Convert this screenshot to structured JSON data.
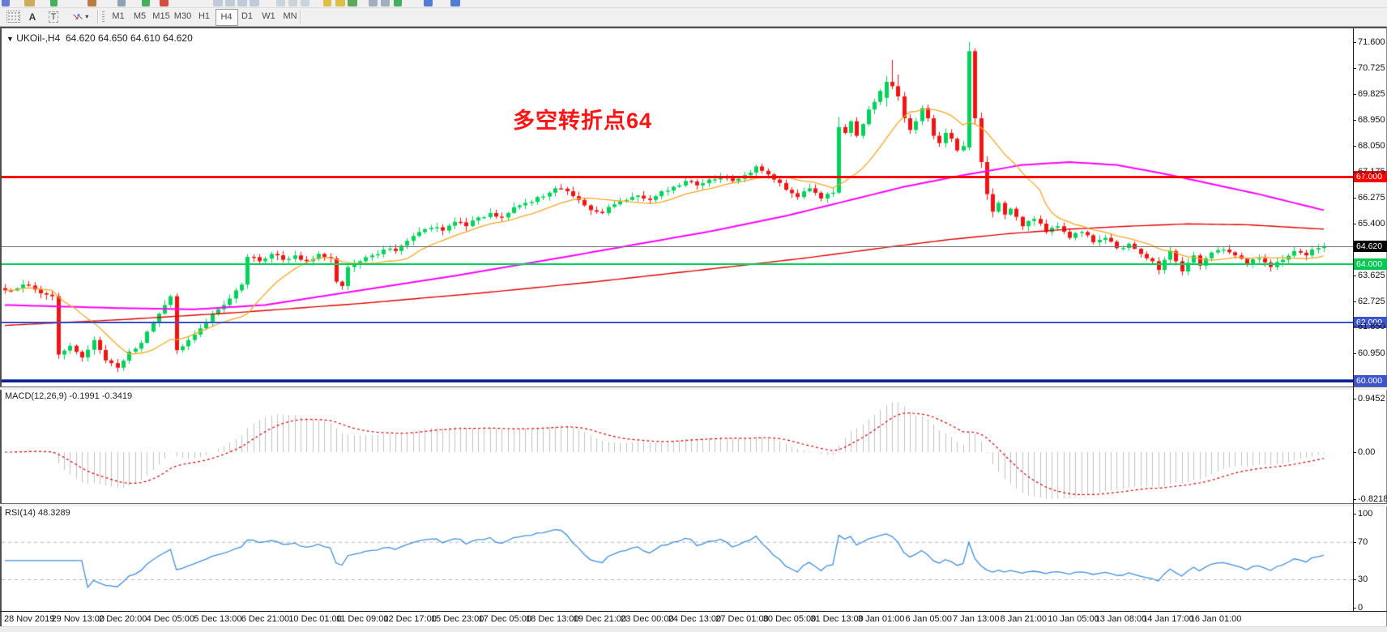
{
  "toolbar": {
    "tools": {
      "pointer_grid": "F",
      "text_a": "A",
      "text_label": "T"
    },
    "timeframes": [
      "M1",
      "M5",
      "M15",
      "M30",
      "H1",
      "H4",
      "D1",
      "W1",
      "MN"
    ],
    "active_timeframe": "H4",
    "top_fragments": [
      [
        2,
        10,
        "#5570cc"
      ],
      [
        30,
        13,
        "#c9a54b"
      ],
      [
        62,
        9,
        "#2fa94e"
      ],
      [
        108,
        11,
        "#b4702e"
      ],
      [
        145,
        10,
        "#8596ad"
      ],
      [
        175,
        10,
        "#2fa94e"
      ],
      [
        197,
        11,
        "#d23b2a"
      ],
      [
        263,
        12,
        "#b9c6d4"
      ],
      [
        278,
        12,
        "#b9c6d4"
      ],
      [
        293,
        12,
        "#b9c6d4"
      ],
      [
        308,
        12,
        "#b9c6d4"
      ],
      [
        341,
        11,
        "#c6cfd9"
      ],
      [
        356,
        11,
        "#c6cfd9"
      ],
      [
        371,
        11,
        "#c6cfd9"
      ],
      [
        399,
        10,
        "#d9b931"
      ],
      [
        414,
        12,
        "#d9b931"
      ],
      [
        429,
        12,
        "#4f9e48"
      ],
      [
        455,
        11,
        "#98a6b8"
      ],
      [
        470,
        11,
        "#98a6b8"
      ],
      [
        486,
        10,
        "#2fa94e"
      ],
      [
        523,
        11,
        "#3f6fd0"
      ],
      [
        556,
        12,
        "#3f6fd0"
      ]
    ]
  },
  "chart": {
    "symbol_period": "UKOil-,H4",
    "quotes": "64.620 64.650 64.610 64.620",
    "annotation": "多空转折点64",
    "annotation_color": "#fe1414",
    "current_price": "64.620",
    "price_ticks": [
      {
        "t": "71.600",
        "p": 71.6
      },
      {
        "t": "70.725",
        "p": 70.725
      },
      {
        "t": "69.825",
        "p": 69.825
      },
      {
        "t": "68.950",
        "p": 68.95
      },
      {
        "t": "68.050",
        "p": 68.05
      },
      {
        "t": "67.175",
        "p": 67.175
      },
      {
        "t": "66.275",
        "p": 66.275
      },
      {
        "t": "65.400",
        "p": 65.4
      },
      {
        "t": "63.625",
        "p": 63.625
      },
      {
        "t": "62.725",
        "p": 62.725
      },
      {
        "t": "61.850",
        "p": 61.85
      },
      {
        "t": "60.950",
        "p": 60.95
      }
    ],
    "levels": [
      {
        "label": "67.000",
        "price": 67.0,
        "color": "#fe0000",
        "badge": "#fe0000",
        "thickness": 3
      },
      {
        "label": "64.620",
        "price": 64.62,
        "color": "#777777",
        "badge": "#000000",
        "thickness": 1
      },
      {
        "label": "64.000",
        "price": 64.0,
        "color": "#00d25a",
        "badge": "#00c853",
        "thickness": 2
      },
      {
        "label": "62.000",
        "price": 62.0,
        "color": "#3c55cf",
        "badge": "#3c55cf",
        "thickness": 2
      },
      {
        "label": "60.000",
        "price": 60.0,
        "color": "#101f8c",
        "badge": "#3c55cf",
        "thickness": 4
      }
    ]
  },
  "macd": {
    "label": "MACD(12,26,9)",
    "values": "-0.1991 -0.3419",
    "ticks": [
      {
        "t": "0.9452",
        "v": 0.9452
      },
      {
        "t": "0.00",
        "v": 0
      },
      {
        "t": "-0.8218",
        "v": -0.8218
      }
    ]
  },
  "rsi": {
    "label": "RSI(14)",
    "value": "48.3289",
    "ticks": [
      {
        "t": "100",
        "v": 100
      },
      {
        "t": "70",
        "v": 70
      },
      {
        "t": "30",
        "v": 30
      },
      {
        "t": "0",
        "v": 0
      }
    ],
    "dashed_levels": [
      70,
      30
    ]
  },
  "time_axis": [
    "28 Nov 2019",
    "29 Nov 13:00",
    "2 Dec 20:00",
    "4 Dec 05:00",
    "5 Dec 13:00",
    "6 Dec 21:00",
    "10 Dec 01:00",
    "11 Dec 09:00",
    "12 Dec 17:00",
    "15 Dec 23:00",
    "17 Dec 05:00",
    "18 Dec 13:00",
    "19 Dec 21:00",
    "23 Dec 00:00",
    "24 Dec 13:00",
    "27 Dec 01:00",
    "30 Dec 05:00",
    "31 Dec 13:00",
    "3 Jan 01:00",
    "6 Jan 05:00",
    "7 Jan 13:00",
    "8 Jan 21:00",
    "10 Jan 05:00",
    "13 Jan 08:00",
    "14 Jan 17:00",
    "16 Jan 01:00"
  ],
  "chart_data": {
    "type": "candlestick",
    "symbol": "UKOil-",
    "period": "H4",
    "ohlc_current": {
      "open": 64.62,
      "high": 64.65,
      "low": 64.61,
      "close": 64.62
    },
    "price_axis_range": [
      59.8,
      72.1
    ],
    "bars": 224,
    "bar_colors": {
      "up": "#00d25a",
      "down": "#f21414"
    },
    "close_anchors": [
      [
        0,
        63.1
      ],
      [
        3,
        63.3
      ],
      [
        6,
        63.0
      ],
      [
        8,
        62.9
      ],
      [
        9,
        60.9
      ],
      [
        11,
        61.2
      ],
      [
        13,
        60.8
      ],
      [
        15,
        61.4
      ],
      [
        17,
        60.7
      ],
      [
        19,
        60.45
      ],
      [
        21,
        61.0
      ],
      [
        23,
        61.3
      ],
      [
        25,
        62.0
      ],
      [
        27,
        62.6
      ],
      [
        28,
        62.9
      ],
      [
        29,
        61.05
      ],
      [
        31,
        61.4
      ],
      [
        33,
        61.8
      ],
      [
        35,
        62.3
      ],
      [
        37,
        62.6
      ],
      [
        39,
        63.1
      ],
      [
        40,
        63.3
      ],
      [
        41,
        64.25
      ],
      [
        43,
        64.1
      ],
      [
        45,
        64.35
      ],
      [
        47,
        64.15
      ],
      [
        49,
        64.3
      ],
      [
        51,
        64.1
      ],
      [
        53,
        64.35
      ],
      [
        55,
        64.2
      ],
      [
        56,
        63.4
      ],
      [
        57,
        63.25
      ],
      [
        58,
        63.9
      ],
      [
        60,
        64.1
      ],
      [
        62,
        64.3
      ],
      [
        64,
        64.5
      ],
      [
        66,
        64.45
      ],
      [
        68,
        64.8
      ],
      [
        70,
        65.1
      ],
      [
        72,
        65.25
      ],
      [
        74,
        65.15
      ],
      [
        76,
        65.45
      ],
      [
        78,
        65.3
      ],
      [
        80,
        65.6
      ],
      [
        82,
        65.75
      ],
      [
        84,
        65.6
      ],
      [
        86,
        65.95
      ],
      [
        88,
        66.1
      ],
      [
        90,
        66.3
      ],
      [
        92,
        66.45
      ],
      [
        93,
        66.6
      ],
      [
        95,
        66.5
      ],
      [
        97,
        66.2
      ],
      [
        99,
        65.85
      ],
      [
        101,
        65.75
      ],
      [
        103,
        66.05
      ],
      [
        105,
        66.2
      ],
      [
        107,
        66.35
      ],
      [
        109,
        66.2
      ],
      [
        111,
        66.5
      ],
      [
        113,
        66.65
      ],
      [
        115,
        66.85
      ],
      [
        117,
        66.7
      ],
      [
        119,
        66.9
      ],
      [
        121,
        67.0
      ],
      [
        123,
        66.85
      ],
      [
        125,
        67.05
      ],
      [
        127,
        67.35
      ],
      [
        128,
        67.2
      ],
      [
        130,
        66.9
      ],
      [
        132,
        66.55
      ],
      [
        134,
        66.3
      ],
      [
        136,
        66.6
      ],
      [
        138,
        66.25
      ],
      [
        140,
        66.45
      ],
      [
        141,
        68.7
      ],
      [
        142,
        68.5
      ],
      [
        143,
        68.9
      ],
      [
        144,
        68.4
      ],
      [
        145,
        68.8
      ],
      [
        146,
        69.3
      ],
      [
        149,
        70.25
      ],
      [
        150,
        70.1
      ],
      [
        151,
        69.75
      ],
      [
        152,
        69.0
      ],
      [
        153,
        68.6
      ],
      [
        154,
        68.9
      ],
      [
        155,
        69.35
      ],
      [
        156,
        69.0
      ],
      [
        157,
        68.4
      ],
      [
        158,
        68.15
      ],
      [
        159,
        68.5
      ],
      [
        160,
        68.3
      ],
      [
        161,
        67.9
      ],
      [
        162,
        68.05
      ],
      [
        163,
        71.3
      ],
      [
        164,
        69.0
      ],
      [
        165,
        67.5
      ],
      [
        166,
        66.4
      ],
      [
        167,
        65.8
      ],
      [
        168,
        66.1
      ],
      [
        169,
        65.7
      ],
      [
        170,
        65.9
      ],
      [
        172,
        65.3
      ],
      [
        174,
        65.55
      ],
      [
        176,
        65.1
      ],
      [
        178,
        65.3
      ],
      [
        180,
        64.9
      ],
      [
        182,
        65.1
      ],
      [
        184,
        64.75
      ],
      [
        186,
        64.9
      ],
      [
        188,
        64.55
      ],
      [
        190,
        64.7
      ],
      [
        192,
        64.35
      ],
      [
        194,
        64.1
      ],
      [
        195,
        63.8
      ],
      [
        196,
        64.15
      ],
      [
        197,
        64.45
      ],
      [
        198,
        64.1
      ],
      [
        199,
        63.75
      ],
      [
        200,
        64.05
      ],
      [
        201,
        64.3
      ],
      [
        202,
        63.95
      ],
      [
        203,
        64.2
      ],
      [
        204,
        64.4
      ],
      [
        206,
        64.5
      ],
      [
        208,
        64.3
      ],
      [
        210,
        64.0
      ],
      [
        212,
        64.2
      ],
      [
        214,
        63.9
      ],
      [
        216,
        64.15
      ],
      [
        218,
        64.45
      ],
      [
        220,
        64.3
      ],
      [
        221,
        64.5
      ],
      [
        222,
        64.55
      ],
      [
        223,
        64.62
      ]
    ],
    "bar_overrides": [
      [
        141,
        66.45,
        69.05,
        66.4,
        68.7
      ],
      [
        149,
        69.7,
        70.45,
        69.4,
        70.25
      ],
      [
        150,
        70.25,
        71.0,
        70.0,
        70.1
      ],
      [
        151,
        70.1,
        70.5,
        69.6,
        69.75
      ],
      [
        152,
        69.75,
        69.9,
        68.85,
        69.0
      ],
      [
        163,
        68.0,
        71.62,
        67.9,
        71.3
      ],
      [
        164,
        71.3,
        71.4,
        68.8,
        69.0
      ],
      [
        165,
        69.0,
        69.2,
        67.3,
        67.5
      ],
      [
        166,
        67.5,
        67.7,
        66.2,
        66.4
      ],
      [
        167,
        66.4,
        66.6,
        65.6,
        65.8
      ]
    ],
    "moving_averages": {
      "fast": {
        "color": "#f5a623",
        "type": "sma",
        "period": 13
      },
      "mid": {
        "color": "#ff00ff",
        "anchors": [
          [
            0,
            62.6
          ],
          [
            18,
            62.5
          ],
          [
            32,
            62.45
          ],
          [
            44,
            62.6
          ],
          [
            60,
            63.1
          ],
          [
            76,
            63.6
          ],
          [
            92,
            64.15
          ],
          [
            106,
            64.65
          ],
          [
            120,
            65.15
          ],
          [
            132,
            65.65
          ],
          [
            142,
            66.15
          ],
          [
            152,
            66.65
          ],
          [
            162,
            67.05
          ],
          [
            172,
            67.4
          ],
          [
            180,
            67.5
          ],
          [
            188,
            67.4
          ],
          [
            196,
            67.1
          ],
          [
            204,
            66.75
          ],
          [
            212,
            66.4
          ],
          [
            218,
            66.1
          ],
          [
            223,
            65.85
          ]
        ]
      },
      "slow": {
        "color": "#e00000",
        "anchors": [
          [
            0,
            61.9
          ],
          [
            20,
            62.1
          ],
          [
            40,
            62.35
          ],
          [
            60,
            62.65
          ],
          [
            80,
            63.0
          ],
          [
            100,
            63.4
          ],
          [
            120,
            63.85
          ],
          [
            135,
            64.2
          ],
          [
            150,
            64.6
          ],
          [
            160,
            64.85
          ],
          [
            170,
            65.05
          ],
          [
            180,
            65.2
          ],
          [
            190,
            65.3
          ],
          [
            200,
            65.38
          ],
          [
            210,
            65.35
          ],
          [
            223,
            65.2
          ]
        ]
      }
    },
    "indicators": {
      "macd": {
        "fast": 12,
        "slow": 26,
        "signal": 9,
        "current_macd": -0.1991,
        "current_signal": -0.3419,
        "axis_max": 0.9452,
        "axis_min": -0.8218,
        "histogram_color": "#c0c0c0",
        "signal_color": "#dd0000"
      },
      "rsi": {
        "period": 14,
        "current": 48.3289,
        "color": "#3f8fdd",
        "levels": [
          70,
          30
        ],
        "axis_range": [
          0,
          100
        ]
      }
    }
  }
}
